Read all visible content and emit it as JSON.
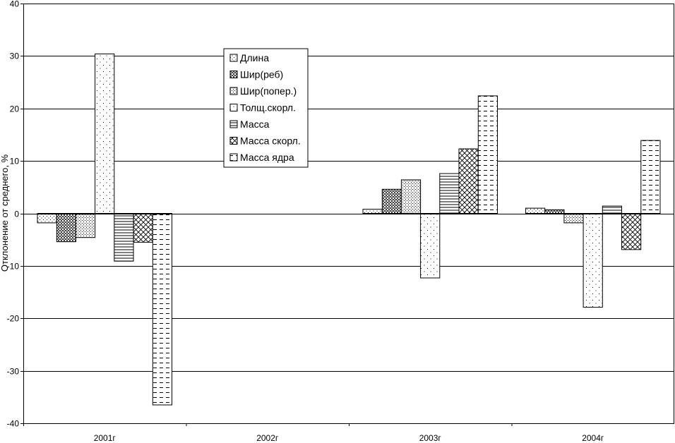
{
  "chart_data": {
    "type": "bar",
    "categories": [
      "2001г",
      "2002г",
      "2003г",
      "2004г"
    ],
    "series": [
      {
        "name": "Длина",
        "values": [
          -1.8,
          null,
          0.8,
          1.0
        ]
      },
      {
        "name": "Шир(реб)",
        "values": [
          -5.4,
          null,
          4.6,
          0.7
        ]
      },
      {
        "name": "Шир(попер.)",
        "values": [
          -4.6,
          null,
          6.4,
          -1.8
        ]
      },
      {
        "name": "Толщ.скорл.",
        "values": [
          30.4,
          null,
          -12.3,
          -17.9
        ]
      },
      {
        "name": "Масса",
        "values": [
          -9.1,
          null,
          7.6,
          1.4
        ]
      },
      {
        "name": "Масса скорл.",
        "values": [
          -5.5,
          null,
          12.3,
          -6.9
        ]
      },
      {
        "name": "Масса ядра",
        "values": [
          -36.5,
          null,
          22.4,
          13.9
        ]
      }
    ],
    "xlabel": "",
    "ylabel": "Отклонение от среднего, %",
    "ylim": [
      -40,
      40
    ],
    "yticks": [
      40,
      30,
      20,
      10,
      0,
      -10,
      -20,
      -30,
      -40
    ],
    "grid": true,
    "legend_position": "upper-center"
  }
}
